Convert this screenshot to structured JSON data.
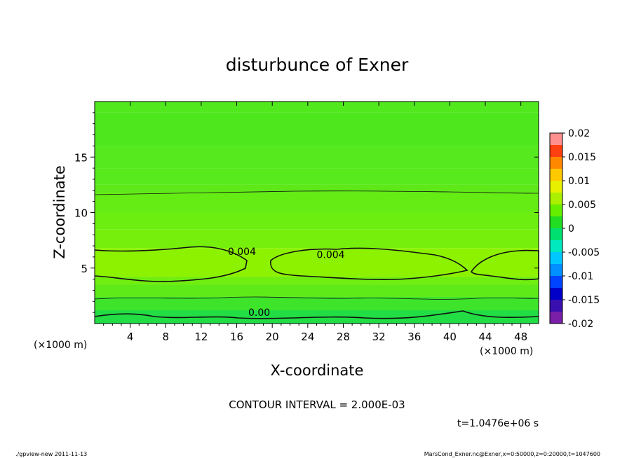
{
  "chart_data": {
    "type": "contour",
    "title": "disturbunce of Exner",
    "xlabel": "X-coordinate",
    "ylabel": "Z-coordinate",
    "x_unit_label": "(×1000 m)",
    "y_unit_label": "(×1000 m)",
    "xlim": [
      0,
      50
    ],
    "ylim": [
      0,
      20
    ],
    "x_ticks": [
      4,
      8,
      12,
      16,
      20,
      24,
      28,
      32,
      36,
      40,
      44,
      48
    ],
    "y_ticks": [
      5,
      10,
      15
    ],
    "contour_interval_text": "CONTOUR INTERVAL = 2.000E-03",
    "time_text": "t=1.0476e+06 s",
    "contour_labels": [
      {
        "text": "0.004",
        "x": 15,
        "z": 6.5
      },
      {
        "text": "0.004",
        "x": 25,
        "z": 6.2
      },
      {
        "text": "0.00",
        "x": 17.3,
        "z": 1.0
      }
    ],
    "colorbar": {
      "ticks": [
        "0.02",
        "0.015",
        "0.01",
        "0.005",
        "0",
        "-0.005",
        "-0.01",
        "-0.015",
        "-0.02"
      ],
      "min": -0.02,
      "max": 0.02,
      "bands": [
        {
          "from": -0.02,
          "to": -0.0175,
          "color": "#7a1fa8"
        },
        {
          "from": -0.0175,
          "to": -0.015,
          "color": "#3a0fb0"
        },
        {
          "from": -0.015,
          "to": -0.0125,
          "color": "#0000c8"
        },
        {
          "from": -0.0125,
          "to": -0.01,
          "color": "#0044ff"
        },
        {
          "from": -0.01,
          "to": -0.0075,
          "color": "#0090ff"
        },
        {
          "from": -0.0075,
          "to": -0.005,
          "color": "#00c8ff"
        },
        {
          "from": -0.005,
          "to": -0.0025,
          "color": "#00e8c0"
        },
        {
          "from": -0.0025,
          "to": 0,
          "color": "#00e070"
        },
        {
          "from": 0,
          "to": 0.0025,
          "color": "#22dd22"
        },
        {
          "from": 0.0025,
          "to": 0.005,
          "color": "#66ee00"
        },
        {
          "from": 0.005,
          "to": 0.0075,
          "color": "#aaf000"
        },
        {
          "from": 0.0075,
          "to": 0.01,
          "color": "#e8f000"
        },
        {
          "from": 0.01,
          "to": 0.0125,
          "color": "#ffc800"
        },
        {
          "from": 0.0125,
          "to": 0.015,
          "color": "#ff8800"
        },
        {
          "from": 0.015,
          "to": 0.0175,
          "color": "#ff4010"
        },
        {
          "from": 0.0175,
          "to": 0.02,
          "color": "#ff9090"
        }
      ]
    },
    "field_bands": [
      {
        "from_z": 19,
        "to_z": 20,
        "value": 0.0024,
        "color": "#52e81e"
      },
      {
        "from_z": 16,
        "to_z": 19,
        "value": 0.0022,
        "color": "#4ee61c"
      },
      {
        "from_z": 14,
        "to_z": 16,
        "value": 0.0026,
        "color": "#55e91e"
      },
      {
        "from_z": 12.5,
        "to_z": 14,
        "value": 0.003,
        "color": "#58ea1c"
      },
      {
        "from_z": 11.8,
        "to_z": 12.5,
        "value": 0.0032,
        "color": "#5ee818"
      },
      {
        "from_z": 10,
        "to_z": 11.8,
        "value": 0.0036,
        "color": "#64ec14"
      },
      {
        "from_z": 8.5,
        "to_z": 10,
        "value": 0.0038,
        "color": "#6cee10"
      },
      {
        "from_z": 6.8,
        "to_z": 8.5,
        "value": 0.004,
        "color": "#76ef0c"
      },
      {
        "from_z": 4.2,
        "to_z": 6.8,
        "value": 0.0046,
        "color": "#8cf200"
      },
      {
        "from_z": 3.5,
        "to_z": 4.2,
        "value": 0.0036,
        "color": "#70ee10"
      },
      {
        "from_z": 2.4,
        "to_z": 3.5,
        "value": 0.003,
        "color": "#5eea18"
      },
      {
        "from_z": 1.2,
        "to_z": 2.4,
        "value": 0.0016,
        "color": "#3ee42a"
      },
      {
        "from_z": 0,
        "to_z": 1.2,
        "value": -0.0004,
        "color": "#22dd44"
      }
    ]
  },
  "footer": {
    "left": "./gpview-new   2011-11-13",
    "right": "MarsCond_Exner.nc@Exner,x=0:50000,z=0:20000,t=1047600"
  }
}
